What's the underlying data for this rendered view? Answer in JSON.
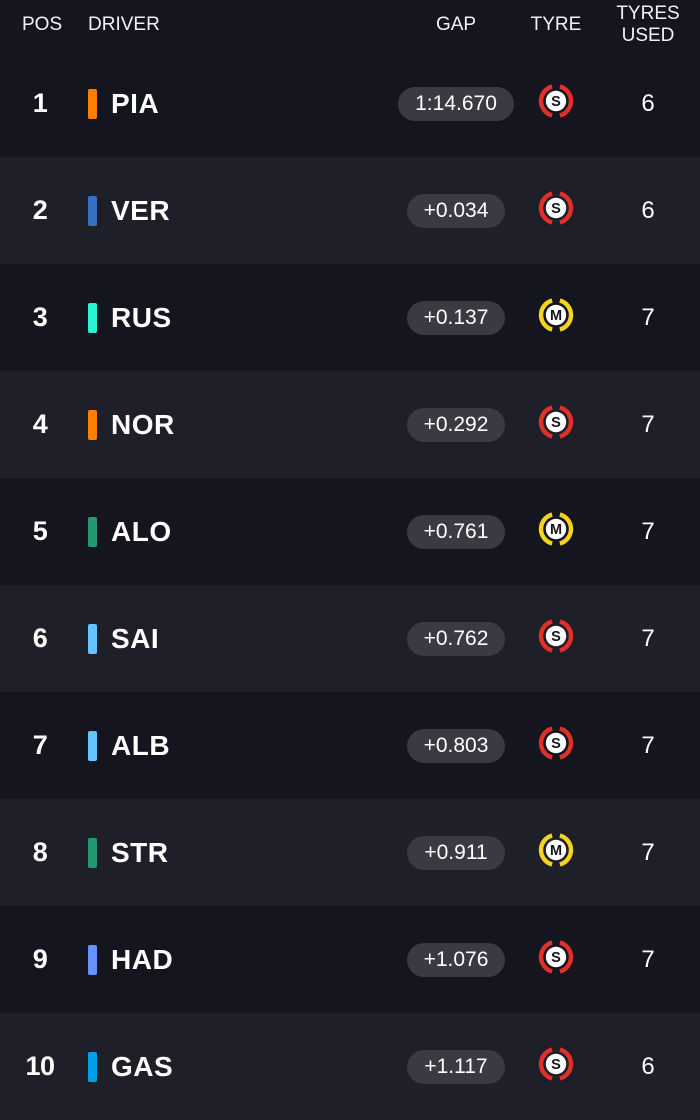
{
  "header": {
    "pos": "POS",
    "driver": "DRIVER",
    "gap": "GAP",
    "tyre": "TYRE",
    "tyres_used": "TYRES\nUSED"
  },
  "colors": {
    "background_dark": "#14151e",
    "background_light": "#1e1f29",
    "pill_background": "#3a3a42",
    "text": "#ffffff",
    "tyre_soft": "#e23028",
    "tyre_medium": "#f5d31e",
    "tyre_letter": "#15151e",
    "tyre_disc": "#ffffff"
  },
  "rows": [
    {
      "pos": "1",
      "driver": "PIA",
      "team_color": "#FF8000",
      "gap": "1:14.670",
      "tyre_letter": "S",
      "tyre_name": "soft",
      "tyres_used": "6"
    },
    {
      "pos": "2",
      "driver": "VER",
      "team_color": "#3671C6",
      "gap": "+0.034",
      "tyre_letter": "S",
      "tyre_name": "soft",
      "tyres_used": "6"
    },
    {
      "pos": "3",
      "driver": "RUS",
      "team_color": "#27F4D2",
      "gap": "+0.137",
      "tyre_letter": "M",
      "tyre_name": "medium",
      "tyres_used": "7"
    },
    {
      "pos": "4",
      "driver": "NOR",
      "team_color": "#FF8000",
      "gap": "+0.292",
      "tyre_letter": "S",
      "tyre_name": "soft",
      "tyres_used": "7"
    },
    {
      "pos": "5",
      "driver": "ALO",
      "team_color": "#229971",
      "gap": "+0.761",
      "tyre_letter": "M",
      "tyre_name": "medium",
      "tyres_used": "7"
    },
    {
      "pos": "6",
      "driver": "SAI",
      "team_color": "#64C4FF",
      "gap": "+0.762",
      "tyre_letter": "S",
      "tyre_name": "soft",
      "tyres_used": "7"
    },
    {
      "pos": "7",
      "driver": "ALB",
      "team_color": "#64C4FF",
      "gap": "+0.803",
      "tyre_letter": "S",
      "tyre_name": "soft",
      "tyres_used": "7"
    },
    {
      "pos": "8",
      "driver": "STR",
      "team_color": "#229971",
      "gap": "+0.911",
      "tyre_letter": "M",
      "tyre_name": "medium",
      "tyres_used": "7"
    },
    {
      "pos": "9",
      "driver": "HAD",
      "team_color": "#6692FF",
      "gap": "+1.076",
      "tyre_letter": "S",
      "tyre_name": "soft",
      "tyres_used": "7"
    },
    {
      "pos": "10",
      "driver": "GAS",
      "team_color": "#00A1E8",
      "gap": "+1.117",
      "tyre_letter": "S",
      "tyre_name": "soft",
      "tyres_used": "6"
    }
  ]
}
